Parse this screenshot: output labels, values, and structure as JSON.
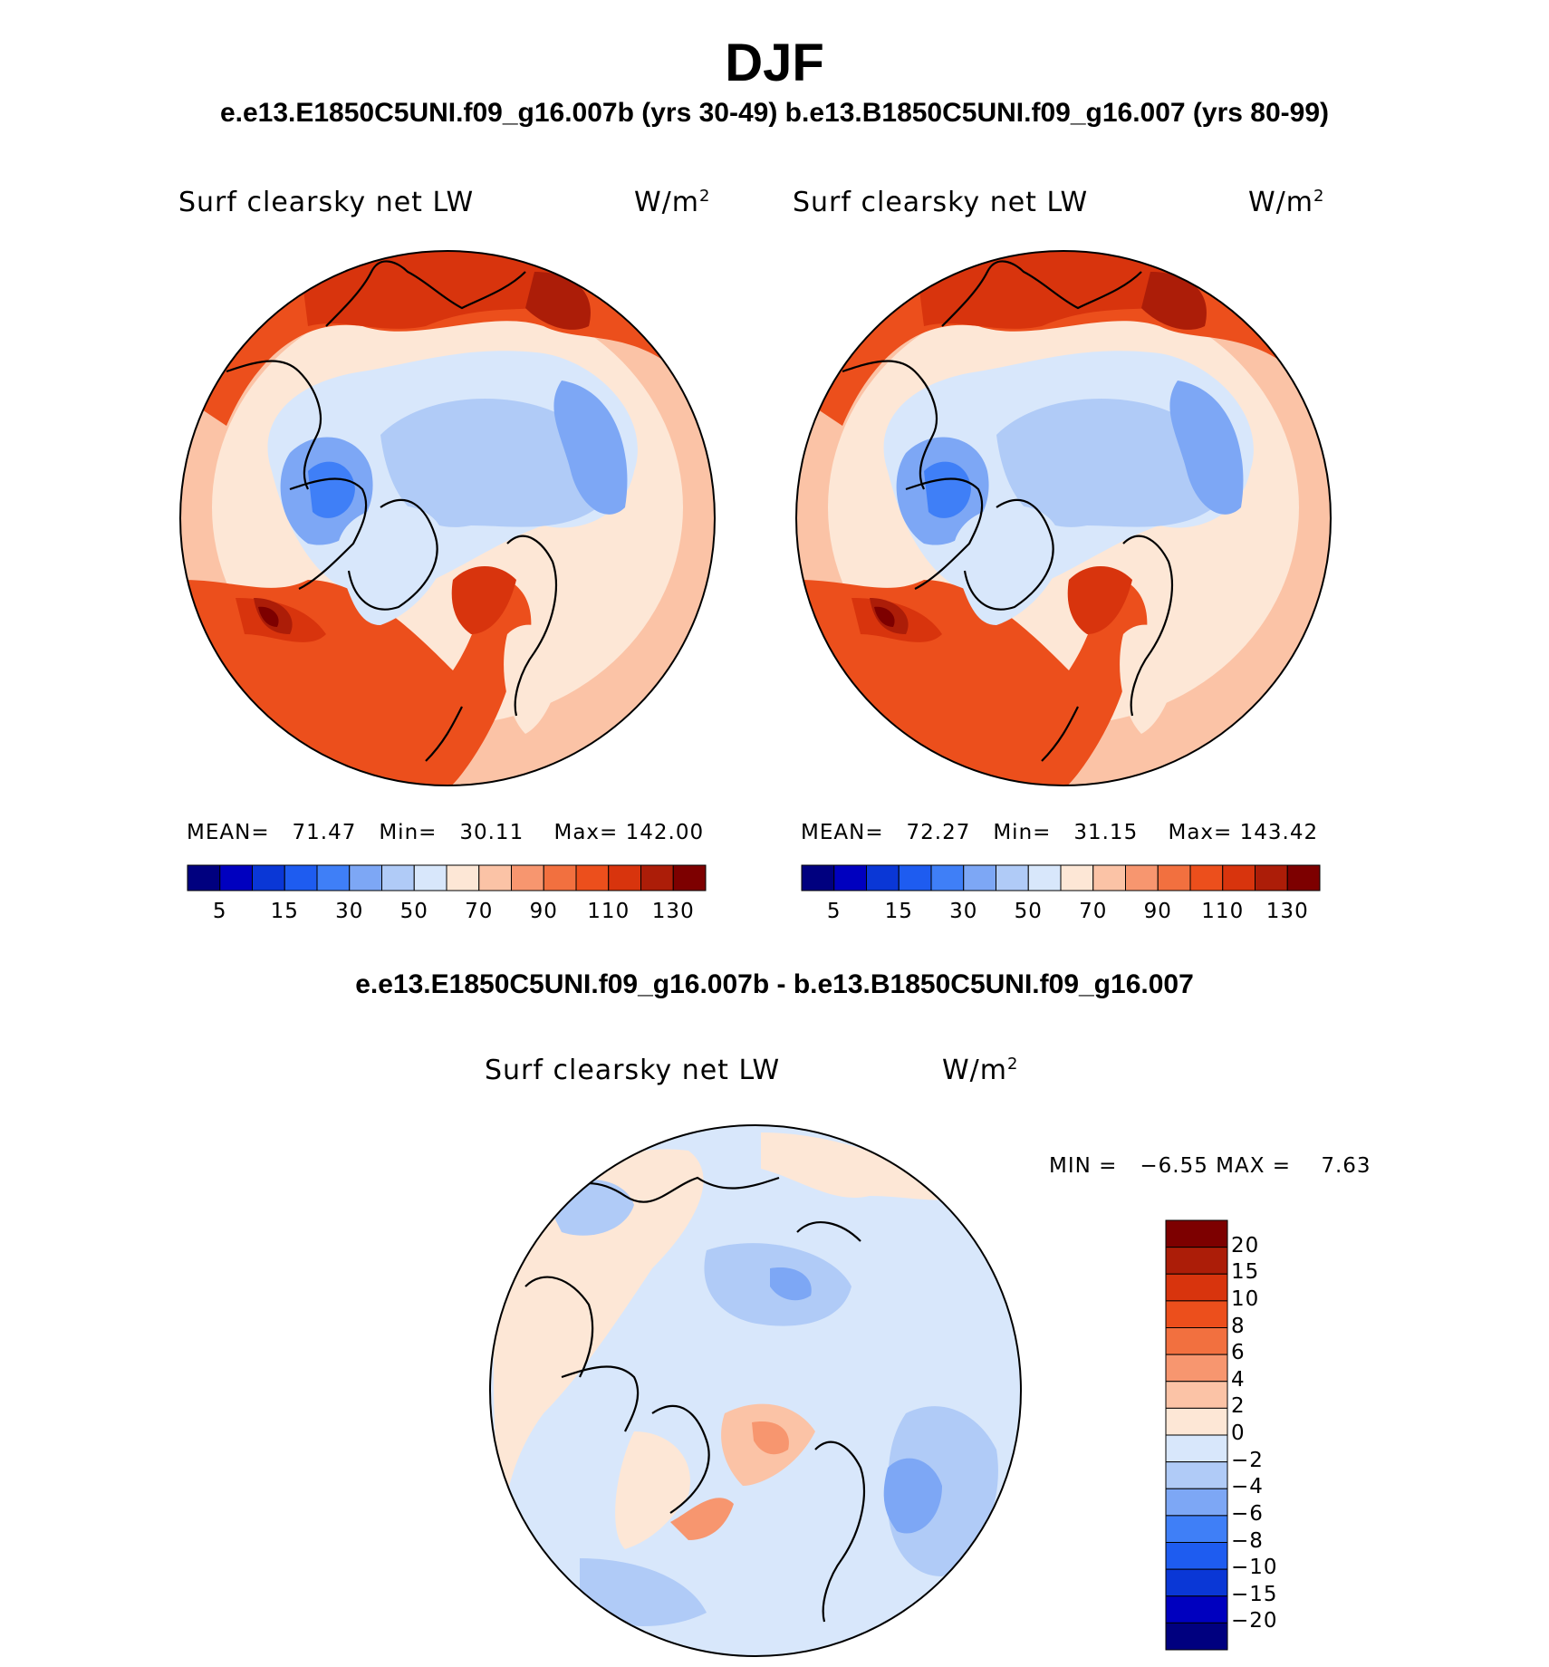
{
  "title": "DJF",
  "subtitle": "e.e13.E1850C5UNI.f09_g16.007b (yrs 30-49)  b.e13.B1850C5UNI.f09_g16.007 (yrs 80-99)",
  "diff_title": "e.e13.E1850C5UNI.f09_g16.007b - b.e13.B1850C5UNI.f09_g16.007",
  "panels": [
    {
      "name": "Surf clearsky net LW",
      "units": "W/m",
      "units_sup": "2",
      "mean_label": "MEAN=",
      "mean": "71.47",
      "min_label": "Min=",
      "min": "30.11",
      "max_label": "Max=",
      "max": "142.00"
    },
    {
      "name": "Surf clearsky net LW",
      "units": "W/m",
      "units_sup": "2",
      "mean_label": "MEAN=",
      "mean": "72.27",
      "min_label": "Min=",
      "min": "31.15",
      "max_label": "Max=",
      "max": "143.42"
    }
  ],
  "diff_panel": {
    "name": "Surf clearsky net LW",
    "units": "W/m",
    "units_sup": "2",
    "min_label": "MIN =",
    "min": "−6.55",
    "max_label": "MAX =",
    "max": "7.63"
  },
  "colorbar_abs": {
    "colors": [
      "#00007f",
      "#0000bf",
      "#0a37d6",
      "#1e5cf0",
      "#3f7ff7",
      "#7da7f5",
      "#b0cbf7",
      "#d8e7fb",
      "#fde7d6",
      "#fbc3a6",
      "#f7966f",
      "#f2703f",
      "#ec4f1c",
      "#d8340d",
      "#ac1d08",
      "#7d0000"
    ],
    "tick_labels": [
      "5",
      "15",
      "30",
      "50",
      "70",
      "90",
      "110",
      "130"
    ]
  },
  "colorbar_diff": {
    "colors": [
      "#7d0000",
      "#ac1d08",
      "#d8340d",
      "#ec4f1c",
      "#f2703f",
      "#f7966f",
      "#fbc3a6",
      "#fde7d6",
      "#d8e7fb",
      "#b0cbf7",
      "#7da7f5",
      "#3f7ff7",
      "#1e5cf0",
      "#0a37d6",
      "#0000bf",
      "#00007f"
    ],
    "tick_labels": [
      "20",
      "15",
      "10",
      "8",
      "6",
      "4",
      "2",
      "0",
      "−2",
      "−4",
      "−6",
      "−8",
      "−10",
      "−15",
      "−20"
    ]
  },
  "map_colors": {
    "ocean_warm": "#ec4f1c",
    "ocean_warmer": "#d8340d",
    "ocean_hot": "#ac1d08",
    "ocean_max": "#7d0000",
    "mid": "#f7966f",
    "low": "#fbc3a6",
    "pale": "#fde7d6",
    "coldpale": "#d8e7fb",
    "cold1": "#b0cbf7",
    "cold2": "#7da7f5",
    "cold3": "#3f7ff7"
  }
}
